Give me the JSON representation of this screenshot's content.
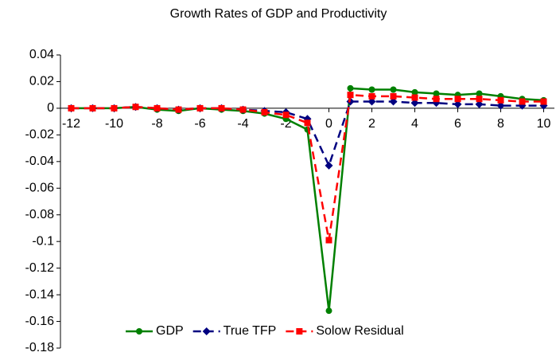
{
  "chart_data": {
    "type": "line",
    "title": "Growth Rates of GDP and Productivity",
    "x": [
      -12,
      -11,
      -10,
      -9,
      -8,
      -7,
      -6,
      -5,
      -4,
      -3,
      -2,
      -1,
      0,
      1,
      2,
      3,
      4,
      5,
      6,
      7,
      8,
      9,
      10
    ],
    "xlim": [
      -12.5,
      10.5
    ],
    "xticks": [
      -12,
      -10,
      -8,
      -6,
      -4,
      -2,
      0,
      2,
      4,
      6,
      8,
      10
    ],
    "ylim": [
      -0.18,
      0.04
    ],
    "yticks": [
      0.04,
      0.02,
      0,
      -0.02,
      -0.04,
      -0.06,
      -0.08,
      -0.1,
      -0.12,
      -0.14,
      -0.16,
      -0.18
    ],
    "legend": "bottom",
    "series": [
      {
        "name": "GDP",
        "color": "#008000",
        "marker": "circle",
        "dash": false,
        "values": [
          0,
          0,
          0,
          0.001,
          -0.001,
          -0.002,
          0,
          -0.001,
          -0.002,
          -0.004,
          -0.008,
          -0.016,
          -0.152,
          0.015,
          0.014,
          0.014,
          0.012,
          0.011,
          0.01,
          0.011,
          0.009,
          0.007,
          0.006
        ]
      },
      {
        "name": "True TFP",
        "color": "#000080",
        "marker": "diamond",
        "dash": true,
        "values": [
          0,
          0,
          0,
          0.001,
          0,
          -0.001,
          0,
          0,
          -0.001,
          -0.002,
          -0.003,
          -0.008,
          -0.043,
          0.005,
          0.005,
          0.005,
          0.004,
          0.004,
          0.003,
          0.003,
          0.002,
          0.002,
          0.002
        ]
      },
      {
        "name": "Solow Residual",
        "color": "#ff0000",
        "marker": "square",
        "dash": true,
        "values": [
          0,
          0,
          0,
          0.001,
          0,
          -0.001,
          0,
          0,
          -0.001,
          -0.003,
          -0.005,
          -0.011,
          -0.099,
          0.01,
          0.009,
          0.009,
          0.008,
          0.007,
          0.007,
          0.007,
          0.006,
          0.005,
          0.005
        ]
      }
    ]
  }
}
